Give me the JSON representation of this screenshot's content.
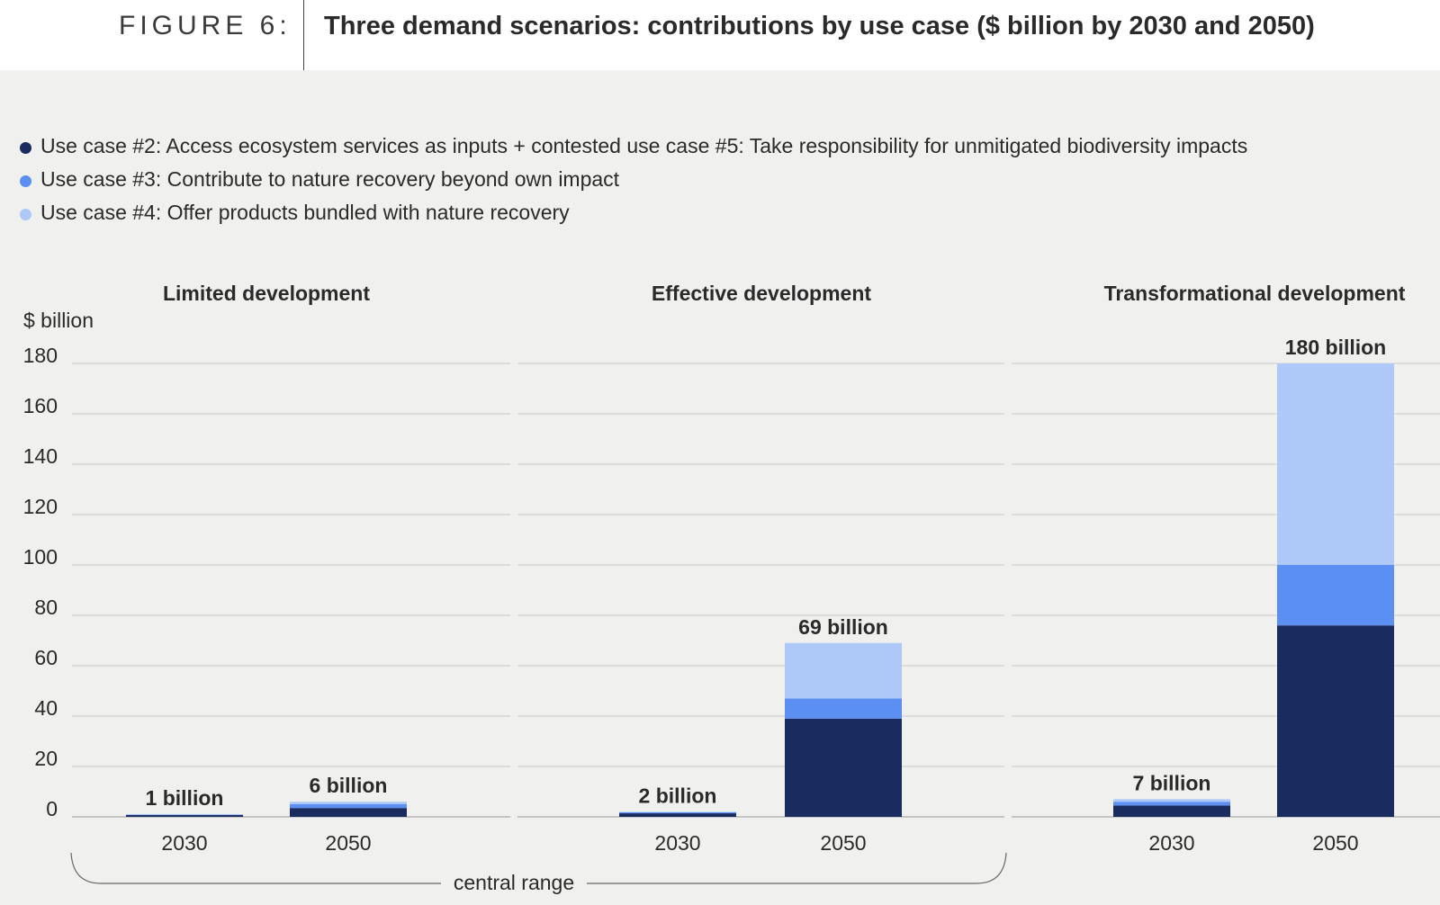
{
  "header": {
    "figure_label": "FIGURE 6:",
    "title": "Three demand scenarios: contributions by use case ($ billion by 2030 and 2050)"
  },
  "colors": {
    "uc2": "#1a2b5f",
    "uc3": "#5b8ff2",
    "uc4": "#aec8f7",
    "grid": "#c8c8c8",
    "axis": "#999999"
  },
  "legend": [
    {
      "label": "Use case #2: Access ecosystem services as inputs + contested use case #5: Take responsibility for unmitigated biodiversity impacts",
      "color": "#1a2b5f"
    },
    {
      "label": "Use case #3: Contribute to nature recovery beyond own impact",
      "color": "#5b8ff2"
    },
    {
      "label": "Use case #4: Offer products bundled with nature recovery",
      "color": "#aec8f7"
    }
  ],
  "chart_data": {
    "type": "bar",
    "stacked": true,
    "ylabel": "$ billion",
    "ylim": [
      0,
      180
    ],
    "yticks": [
      0,
      20,
      40,
      60,
      80,
      100,
      120,
      140,
      160,
      180
    ],
    "series_names": [
      "Use case #2: Access ecosystem services as inputs + contested use case #5: Take responsibility for unmitigated biodiversity impacts",
      "Use case #3: Contribute to nature recovery beyond own impact",
      "Use case #4: Offer products bundled with nature recovery"
    ],
    "range_label": "central range",
    "panels": [
      {
        "title": "Limited development",
        "bars": [
          {
            "x": "2030",
            "values": [
              0.7,
              0.2,
              0.1
            ],
            "label": "1 billion"
          },
          {
            "x": "2050",
            "values": [
              3.5,
              1.5,
              1.0
            ],
            "label": "6 billion"
          }
        ]
      },
      {
        "title": "Effective development",
        "bars": [
          {
            "x": "2030",
            "values": [
              1.4,
              0.4,
              0.2
            ],
            "label": "2 billion"
          },
          {
            "x": "2050",
            "values": [
              39,
              8,
              22
            ],
            "label": "69 billion"
          }
        ]
      },
      {
        "title": "Transformational development",
        "bars": [
          {
            "x": "2030",
            "values": [
              4.5,
              1.5,
              1.0
            ],
            "label": "7 billion"
          },
          {
            "x": "2050",
            "values": [
              76,
              24,
              80
            ],
            "label": "180 billion"
          }
        ]
      }
    ]
  }
}
